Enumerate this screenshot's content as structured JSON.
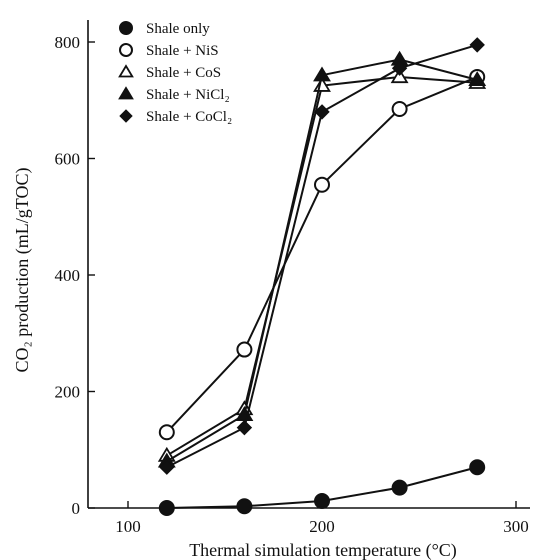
{
  "chart_data": {
    "type": "line",
    "title": "",
    "xlabel": "Thermal simulation temperature (°C)",
    "ylabel": "CO₂ production (mL/gTOC)",
    "xlim": [
      80,
      310
    ],
    "ylim": [
      0,
      850
    ],
    "xticks": [
      100,
      200,
      300
    ],
    "yticks": [
      0,
      200,
      400,
      600,
      800
    ],
    "grid": false,
    "legend_position": "top-left",
    "x": [
      120,
      160,
      200,
      240,
      280
    ],
    "series": [
      {
        "name": "Shale only",
        "marker": "filled-circle",
        "values": [
          0,
          3,
          12,
          35,
          70
        ]
      },
      {
        "name": "Shale + NiS",
        "marker": "open-circle",
        "values": [
          130,
          272,
          555,
          685,
          740
        ]
      },
      {
        "name": "Shale + CoS",
        "marker": "open-triangle",
        "values": [
          90,
          170,
          725,
          740,
          730
        ]
      },
      {
        "name": "Shale + NiCl₂",
        "marker": "filled-triangle",
        "values": [
          80,
          160,
          743,
          770,
          735
        ]
      },
      {
        "name": "Shale + CoCl₂",
        "marker": "filled-diamond",
        "values": [
          70,
          138,
          680,
          755,
          795
        ]
      }
    ]
  }
}
